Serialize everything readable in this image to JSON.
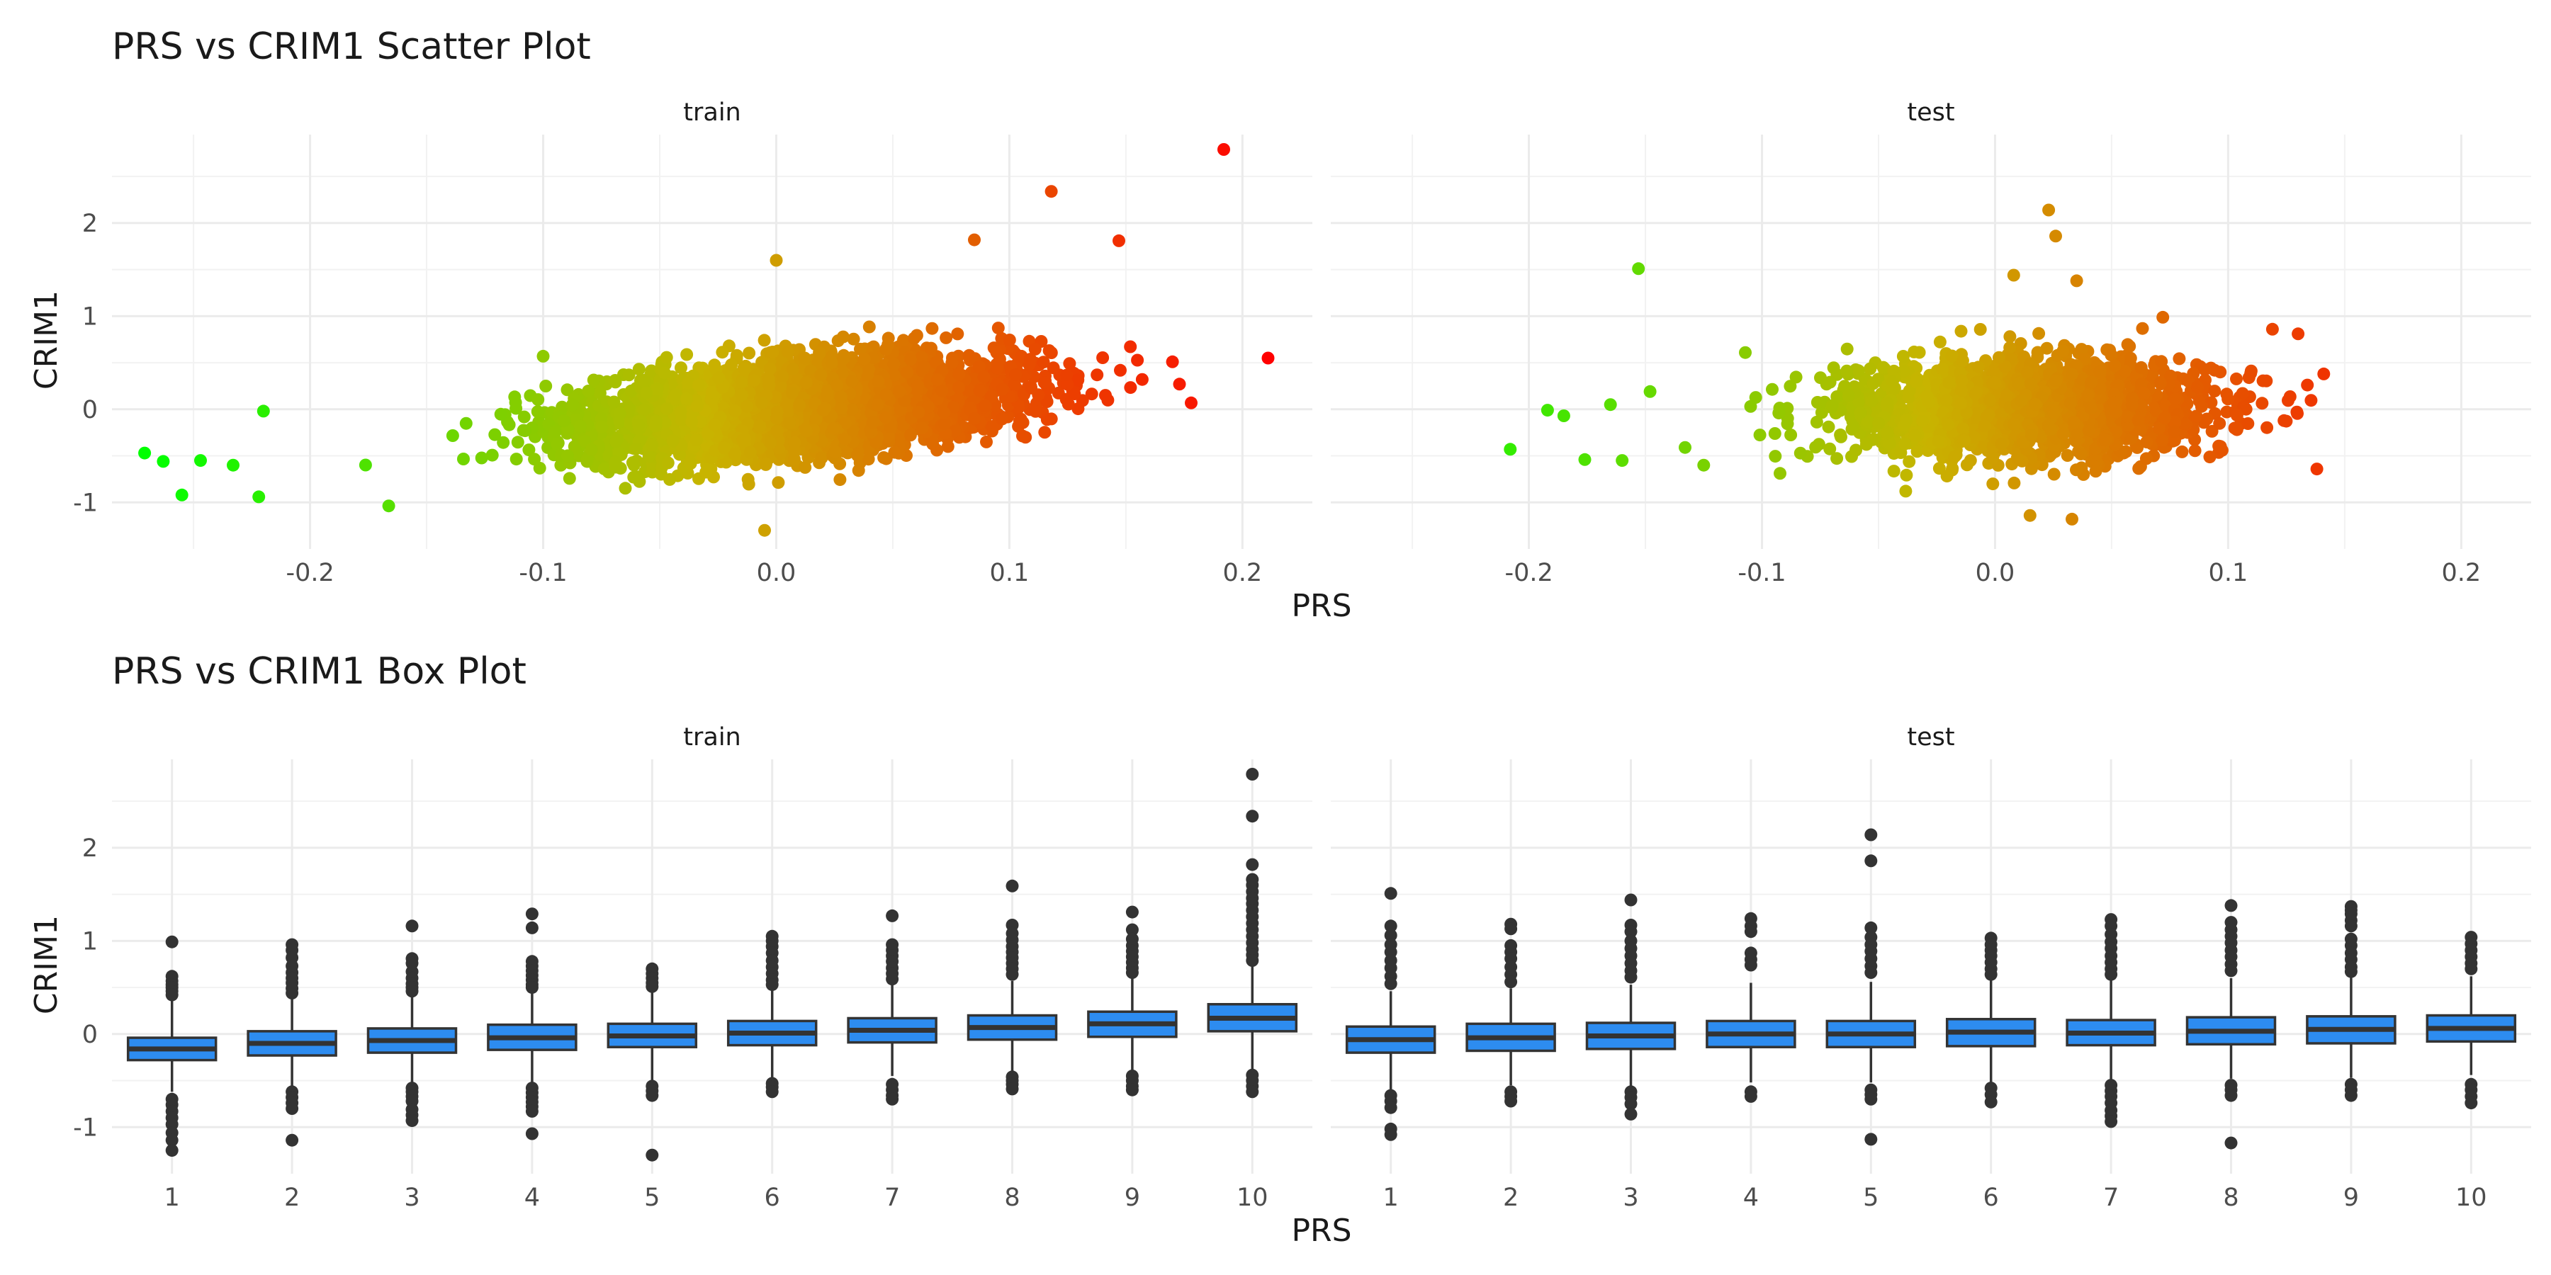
{
  "chart_data": [
    {
      "type": "scatter",
      "title": "PRS vs CRIM1 Scatter Plot",
      "xlabel": "PRS",
      "ylabel": "CRIM1",
      "facets": [
        "train",
        "test"
      ],
      "xlim": [
        -0.285,
        0.23
      ],
      "ylim": [
        -1.5,
        2.95
      ],
      "x_ticks": [
        "-0.2",
        "-0.1",
        "0.0",
        "0.1",
        "0.2"
      ],
      "x_tick_values": [
        -0.2,
        -0.1,
        0.0,
        0.1,
        0.2
      ],
      "y_ticks": [
        "-1",
        "0",
        "1",
        "2"
      ],
      "y_tick_values": [
        -1,
        0,
        1,
        2
      ],
      "color_scale": {
        "low": "#00ff00",
        "mid": "#c8b400",
        "high": "#ff0000",
        "low_value": -0.27,
        "high_value": 0.21
      },
      "grid": true,
      "legend": "none",
      "train": {
        "n_points": 4200,
        "x_mean": 0.01,
        "x_sd": 0.045,
        "slope": 2.2,
        "noise_sd": 0.24,
        "outliers": [
          [
            0.192,
            2.79
          ],
          [
            0.211,
            0.55
          ],
          [
            0.118,
            2.34
          ],
          [
            0.147,
            1.81
          ],
          [
            0.085,
            1.82
          ],
          [
            -0.271,
            -0.47
          ],
          [
            -0.263,
            -0.56
          ],
          [
            -0.255,
            -0.92
          ],
          [
            -0.247,
            -0.55
          ],
          [
            -0.222,
            -0.94
          ],
          [
            -0.1,
            0.57
          ],
          [
            0.0,
            1.6
          ],
          [
            -0.005,
            -1.3
          ],
          [
            0.173,
            0.27
          ],
          [
            0.17,
            0.51
          ],
          [
            0.157,
            0.32
          ],
          [
            -0.233,
            -0.6
          ],
          [
            -0.22,
            -0.02
          ]
        ]
      },
      "test": {
        "n_points": 1800,
        "x_mean": 0.012,
        "x_sd": 0.04,
        "slope": 0.5,
        "noise_sd": 0.27,
        "outliers": [
          [
            -0.153,
            1.51
          ],
          [
            0.023,
            2.14
          ],
          [
            0.026,
            1.86
          ],
          [
            -0.208,
            -0.43
          ],
          [
            -0.192,
            -0.01
          ],
          [
            -0.185,
            -0.07
          ],
          [
            -0.176,
            -0.54
          ],
          [
            -0.165,
            0.05
          ],
          [
            -0.16,
            -0.55
          ],
          [
            -0.148,
            0.19
          ],
          [
            -0.133,
            -0.41
          ],
          [
            -0.125,
            -0.6
          ],
          [
            0.141,
            0.38
          ],
          [
            0.134,
            0.26
          ],
          [
            0.13,
            0.81
          ],
          [
            0.119,
            0.86
          ],
          [
            0.015,
            -1.14
          ],
          [
            0.033,
            -1.18
          ],
          [
            0.008,
            1.44
          ],
          [
            0.035,
            1.38
          ]
        ]
      }
    },
    {
      "type": "box",
      "title": "PRS vs CRIM1 Box Plot",
      "xlabel": "PRS",
      "ylabel": "CRIM1",
      "facets": [
        "train",
        "test"
      ],
      "categories": [
        "1",
        "2",
        "3",
        "4",
        "5",
        "6",
        "7",
        "8",
        "9",
        "10"
      ],
      "ylim": [
        -1.5,
        2.95
      ],
      "y_ticks": [
        "-1",
        "0",
        "1",
        "2"
      ],
      "y_tick_values": [
        -1,
        0,
        1,
        2
      ],
      "fill_color": "#2d8cf0",
      "outline_color": "#333333",
      "grid": true,
      "train": [
        {
          "q1": -0.28,
          "median": -0.16,
          "q3": -0.04,
          "whisker_low": -0.62,
          "whisker_high": 0.36,
          "outliers": [
            0.99,
            0.62,
            0.57,
            0.53,
            0.5,
            0.46,
            0.42,
            -0.7,
            -0.76,
            -0.83,
            -0.9,
            -0.97,
            -1.06,
            -1.14,
            -1.25
          ]
        },
        {
          "q1": -0.23,
          "median": -0.1,
          "q3": 0.03,
          "whisker_low": -0.59,
          "whisker_high": 0.39,
          "outliers": [
            0.96,
            0.9,
            0.82,
            0.73,
            0.66,
            0.6,
            0.55,
            0.49,
            0.44,
            -0.62,
            -0.68,
            -0.74,
            -0.8,
            -1.14
          ]
        },
        {
          "q1": -0.2,
          "median": -0.07,
          "q3": 0.06,
          "whisker_low": -0.55,
          "whisker_high": 0.43,
          "outliers": [
            1.16,
            0.81,
            0.76,
            0.67,
            0.6,
            0.54,
            0.5,
            0.46,
            -0.58,
            -0.62,
            -0.67,
            -0.72,
            -0.81,
            -0.87,
            -0.93
          ]
        },
        {
          "q1": -0.17,
          "median": -0.04,
          "q3": 0.1,
          "whisker_low": -0.54,
          "whisker_high": 0.46,
          "outliers": [
            1.29,
            1.14,
            0.78,
            0.73,
            0.68,
            0.63,
            0.58,
            0.53,
            0.5,
            -0.58,
            -0.63,
            -0.68,
            -0.73,
            -0.78,
            -0.83,
            -1.07
          ]
        },
        {
          "q1": -0.14,
          "median": -0.02,
          "q3": 0.11,
          "whisker_low": -0.5,
          "whisker_high": 0.47,
          "outliers": [
            0.7,
            0.65,
            0.6,
            0.55,
            0.51,
            -0.56,
            -0.61,
            -0.66,
            -1.3
          ]
        },
        {
          "q1": -0.12,
          "median": 0.01,
          "q3": 0.14,
          "whisker_low": -0.5,
          "whisker_high": 0.5,
          "outliers": [
            1.05,
            1.0,
            0.94,
            0.87,
            0.79,
            0.72,
            0.65,
            0.58,
            0.53,
            -0.53,
            -0.57,
            -0.62
          ]
        },
        {
          "q1": -0.09,
          "median": 0.04,
          "q3": 0.17,
          "whisker_low": -0.45,
          "whisker_high": 0.54,
          "outliers": [
            1.27,
            0.96,
            0.9,
            0.84,
            0.78,
            0.71,
            0.65,
            0.59,
            -0.54,
            -0.6,
            -0.66,
            -0.7
          ]
        },
        {
          "q1": -0.06,
          "median": 0.07,
          "q3": 0.2,
          "whisker_low": -0.43,
          "whisker_high": 0.57,
          "outliers": [
            1.59,
            1.17,
            1.08,
            1.01,
            0.94,
            0.88,
            0.82,
            0.76,
            0.7,
            0.64,
            -0.46,
            -0.5,
            -0.54,
            -0.59
          ]
        },
        {
          "q1": -0.03,
          "median": 0.11,
          "q3": 0.24,
          "whisker_low": -0.42,
          "whisker_high": 0.61,
          "outliers": [
            1.31,
            1.12,
            1.02,
            0.95,
            0.89,
            0.83,
            0.77,
            0.71,
            0.66,
            -0.45,
            -0.5,
            -0.56,
            -0.6
          ]
        },
        {
          "q1": 0.03,
          "median": 0.17,
          "q3": 0.32,
          "whisker_low": -0.39,
          "whisker_high": 0.73,
          "outliers": [
            2.79,
            2.34,
            1.82,
            1.66,
            1.6,
            1.53,
            1.46,
            1.4,
            1.33,
            1.26,
            1.19,
            1.12,
            1.05,
            0.98,
            0.91,
            0.85,
            0.79,
            -0.44,
            -0.5,
            -0.56,
            -0.62
          ]
        }
      ],
      "test": [
        {
          "q1": -0.2,
          "median": -0.06,
          "q3": 0.08,
          "whisker_low": -0.6,
          "whisker_high": 0.46,
          "outliers": [
            1.51,
            1.16,
            1.06,
            0.96,
            0.88,
            0.79,
            0.71,
            0.62,
            0.54,
            -0.66,
            -0.72,
            -0.79,
            -1.02,
            -1.08
          ]
        },
        {
          "q1": -0.18,
          "median": -0.04,
          "q3": 0.11,
          "whisker_low": -0.55,
          "whisker_high": 0.49,
          "outliers": [
            1.18,
            1.13,
            0.95,
            0.88,
            0.81,
            0.72,
            0.64,
            0.56,
            -0.62,
            -0.67,
            -0.72
          ]
        },
        {
          "q1": -0.16,
          "median": -0.02,
          "q3": 0.12,
          "whisker_low": -0.56,
          "whisker_high": 0.53,
          "outliers": [
            1.44,
            1.17,
            1.1,
            1.0,
            0.92,
            0.84,
            0.76,
            0.68,
            0.61,
            -0.62,
            -0.68,
            -0.75,
            -0.86
          ]
        },
        {
          "q1": -0.14,
          "median": 0.0,
          "q3": 0.14,
          "whisker_low": -0.52,
          "whisker_high": 0.55,
          "outliers": [
            1.24,
            1.16,
            1.1,
            0.87,
            0.8,
            0.74,
            -0.62,
            -0.67
          ]
        },
        {
          "q1": -0.14,
          "median": 0.0,
          "q3": 0.14,
          "whisker_low": -0.52,
          "whisker_high": 0.56,
          "outliers": [
            2.14,
            1.86,
            1.14,
            1.04,
            0.96,
            0.89,
            0.81,
            0.73,
            0.66,
            -0.6,
            -0.65,
            -0.7,
            -1.13
          ]
        },
        {
          "q1": -0.13,
          "median": 0.02,
          "q3": 0.16,
          "whisker_low": -0.53,
          "whisker_high": 0.6,
          "outliers": [
            1.03,
            0.96,
            0.9,
            0.84,
            0.77,
            0.7,
            0.64,
            -0.58,
            -0.65,
            -0.73
          ]
        },
        {
          "q1": -0.12,
          "median": 0.01,
          "q3": 0.15,
          "whisker_low": -0.5,
          "whisker_high": 0.58,
          "outliers": [
            1.23,
            1.16,
            1.07,
            0.99,
            0.92,
            0.84,
            0.77,
            0.7,
            0.64,
            -0.55,
            -0.61,
            -0.67,
            -0.74,
            -0.82,
            -0.88,
            -0.94
          ]
        },
        {
          "q1": -0.11,
          "median": 0.03,
          "q3": 0.18,
          "whisker_low": -0.48,
          "whisker_high": 0.6,
          "outliers": [
            1.38,
            1.2,
            1.12,
            1.05,
            0.98,
            0.9,
            0.83,
            0.75,
            0.68,
            -0.55,
            -0.6,
            -0.66,
            -1.17
          ]
        },
        {
          "q1": -0.1,
          "median": 0.05,
          "q3": 0.19,
          "whisker_low": -0.47,
          "whisker_high": 0.62,
          "outliers": [
            1.37,
            1.33,
            1.29,
            1.22,
            1.16,
            1.02,
            0.95,
            0.87,
            0.8,
            0.72,
            0.67,
            -0.54,
            -0.6,
            -0.66
          ]
        },
        {
          "q1": -0.08,
          "median": 0.06,
          "q3": 0.2,
          "whisker_low": -0.44,
          "whisker_high": 0.62,
          "outliers": [
            1.04,
            0.97,
            0.9,
            0.83,
            0.76,
            0.7,
            -0.54,
            -0.6,
            -0.67,
            -0.74
          ]
        }
      ]
    }
  ]
}
